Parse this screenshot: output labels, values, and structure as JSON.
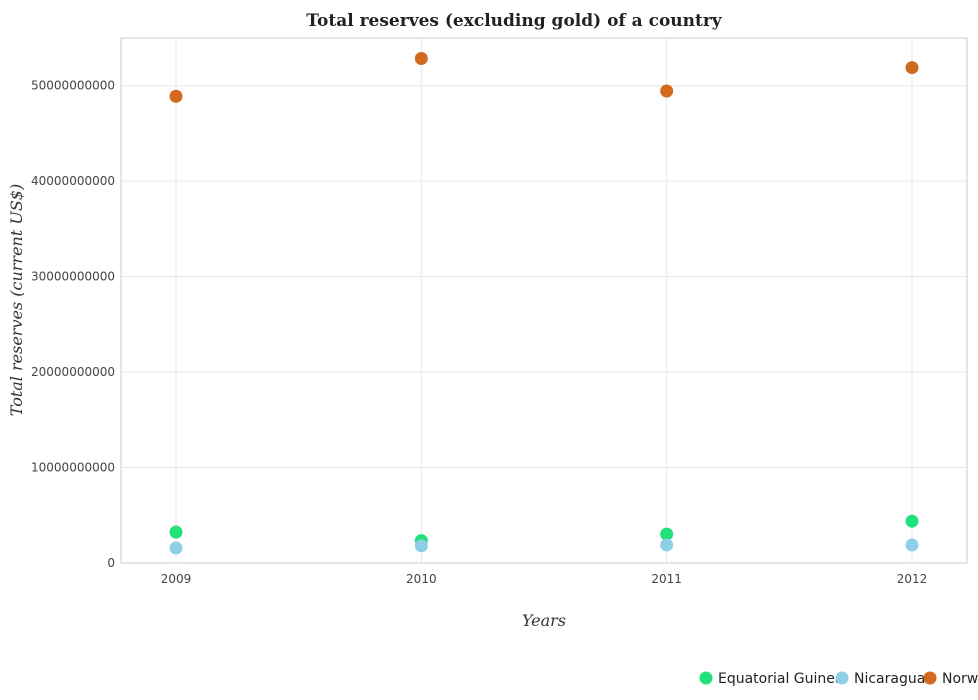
{
  "chart_data": {
    "type": "scatter",
    "title": "Total reserves (excluding gold) of a country",
    "xlabel": "Years",
    "ylabel": "Total reserves (current US$)",
    "categories": [
      "2009",
      "2010",
      "2011",
      "2012"
    ],
    "ylim": [
      0,
      55000000000
    ],
    "yticks": [
      0,
      10000000000,
      20000000000,
      30000000000,
      40000000000,
      50000000000
    ],
    "ytick_labels": [
      "0",
      "10000000000",
      "20000000000",
      "30000000000",
      "40000000000",
      "50000000000"
    ],
    "grid": true,
    "legend_position": "bottom-right",
    "series": [
      {
        "name": "Equatorial Guinea",
        "color": "#22e07a",
        "values": [
          3230000000,
          2350000000,
          3030000000,
          4380000000
        ]
      },
      {
        "name": "Nicaragua",
        "color": "#8ecfe8",
        "values": [
          1570000000,
          1800000000,
          1890000000,
          1880000000
        ]
      },
      {
        "name": "Norway",
        "color": "#d2691e",
        "values": [
          48900000000,
          52850000000,
          49450000000,
          51900000000
        ]
      }
    ]
  }
}
